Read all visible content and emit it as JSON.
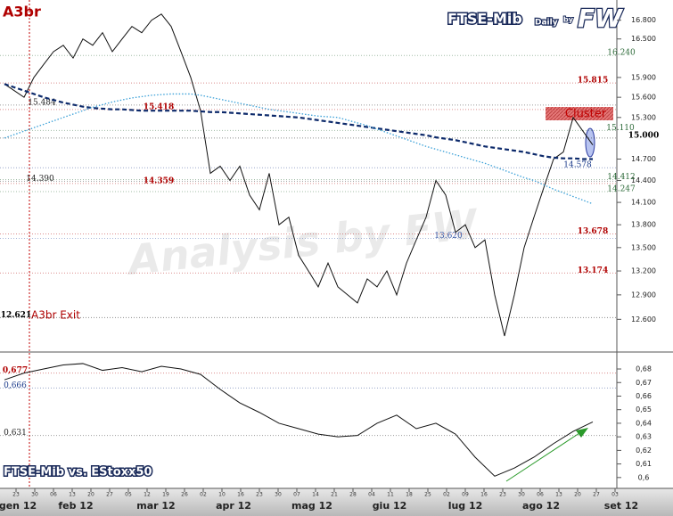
{
  "chart_data": [
    {
      "type": "line",
      "title": "FTSE-Mib",
      "subtitle": "Daily",
      "byline": "by",
      "brand": "FW",
      "watermark": "Analysis by FW",
      "annotations": [
        "A3br",
        "A3br Exit",
        "Cluster"
      ],
      "log_scale": true,
      "ylim": [
        12210,
        17130
      ],
      "yticks": [
        {
          "value": 16800,
          "label": "16.800"
        },
        {
          "value": 16500,
          "label": "16.500"
        },
        {
          "value": 15900,
          "label": "15.900"
        },
        {
          "value": 15600,
          "label": "15.600"
        },
        {
          "value": 15300,
          "label": "15.300"
        },
        {
          "value": 14700,
          "label": "14.700"
        },
        {
          "value": 14400,
          "label": "14.400"
        },
        {
          "value": 14100,
          "label": "14.100"
        },
        {
          "value": 13800,
          "label": "13.800"
        },
        {
          "value": 13500,
          "label": "13.500"
        },
        {
          "value": 13200,
          "label": "13.200"
        },
        {
          "value": 12900,
          "label": "12.900"
        },
        {
          "value": 12600,
          "label": "12.600"
        }
      ],
      "series": [
        {
          "color": "#111111",
          "style": "solid",
          "values": [
            15800,
            15700,
            15600,
            15900,
            16100,
            16300,
            16400,
            16200,
            16500,
            16400,
            16600,
            16300,
            16500,
            16700,
            16600,
            16800,
            16900,
            16700,
            16300,
            15900,
            15400,
            14500,
            14600,
            14400,
            14600,
            14200,
            14000,
            14500,
            13800,
            13900,
            13400,
            13200,
            13000,
            13300,
            13000,
            12900,
            12800,
            13100,
            13000,
            13200,
            12900,
            13300,
            13600,
            13900,
            14400,
            14200,
            13700,
            13800,
            13500,
            13600,
            12900,
            12400,
            12900,
            13500,
            13900,
            14300,
            14700,
            14800,
            15300,
            15100,
            14900
          ]
        },
        {
          "color": "#0d2a6b",
          "style": "dashed",
          "values": [
            15800,
            15750,
            15700,
            15650,
            15600,
            15560,
            15520,
            15490,
            15460,
            15440,
            15430,
            15420,
            15420,
            15410,
            15400,
            15400,
            15400,
            15400,
            15400,
            15400,
            15390,
            15380,
            15380,
            15370,
            15360,
            15350,
            15340,
            15330,
            15320,
            15310,
            15300,
            15280,
            15260,
            15240,
            15220,
            15200,
            15180,
            15160,
            15140,
            15120,
            15100,
            15080,
            15060,
            15040,
            15010,
            14990,
            14970,
            14940,
            14910,
            14880,
            14860,
            14840,
            14820,
            14800,
            14770,
            14740,
            14720,
            14710,
            14710,
            14700,
            14700
          ]
        },
        {
          "color": "#3aa0d8",
          "style": "dotted",
          "values": [
            15000,
            15050,
            15100,
            15150,
            15200,
            15250,
            15300,
            15350,
            15400,
            15450,
            15490,
            15530,
            15560,
            15590,
            15610,
            15630,
            15640,
            15650,
            15650,
            15650,
            15630,
            15600,
            15570,
            15540,
            15510,
            15480,
            15450,
            15420,
            15400,
            15380,
            15360,
            15340,
            15320,
            15310,
            15300,
            15260,
            15220,
            15180,
            15130,
            15080,
            15030,
            14980,
            14930,
            14880,
            14840,
            14800,
            14760,
            14720,
            14680,
            14640,
            14590,
            14540,
            14490,
            14440,
            14400,
            14340,
            14280,
            14230,
            14180,
            14130,
            14080
          ]
        }
      ],
      "levels": [
        {
          "value": 16240,
          "label": "16.240",
          "color": "#2e6b3a"
        },
        {
          "value": 15815,
          "label": "15.815",
          "color": "#b00000"
        },
        {
          "value": 15484,
          "label": "15.484",
          "color": "#222222"
        },
        {
          "value": 15418,
          "label": "15.418",
          "color": "#b00000"
        },
        {
          "value": 15110,
          "label": "15.110",
          "color": "#2e6b3a"
        },
        {
          "value": 15000,
          "label": "15.000",
          "color": "#000000"
        },
        {
          "value": 14578,
          "label": "14.578",
          "color": "#1a3a8a"
        },
        {
          "value": 14412,
          "label": "14.412",
          "color": "#2e6b3a"
        },
        {
          "value": 14390,
          "label": "14.390",
          "color": "#222222"
        },
        {
          "value": 14359,
          "label": "14.359",
          "color": "#b00000"
        },
        {
          "value": 14247,
          "label": "14.247",
          "color": "#2e6b3a"
        },
        {
          "value": 13678,
          "label": "13.678",
          "color": "#b00000"
        },
        {
          "value": 13620,
          "label": "13.620",
          "color": "#3a5aa8"
        },
        {
          "value": 13174,
          "label": "13.174",
          "color": "#b00000"
        },
        {
          "value": 12621,
          "label": "12.621",
          "color": "#000000"
        }
      ]
    },
    {
      "type": "line",
      "title": "FTSE-Mib vs. EStoxx50",
      "log_scale": false,
      "ylim": [
        0.592,
        0.6925
      ],
      "yticks": [
        {
          "value": 0.6,
          "label": "0,6"
        },
        {
          "value": 0.61,
          "label": "0,61"
        },
        {
          "value": 0.62,
          "label": "0,62"
        },
        {
          "value": 0.63,
          "label": "0,63"
        },
        {
          "value": 0.64,
          "label": "0,64"
        },
        {
          "value": 0.65,
          "label": "0,65"
        },
        {
          "value": 0.66,
          "label": "0,66"
        },
        {
          "value": 0.67,
          "label": "0,67"
        },
        {
          "value": 0.68,
          "label": "0,68"
        }
      ],
      "series": [
        {
          "color": "#111111",
          "style": "solid",
          "values": [
            0.672,
            0.677,
            0.68,
            0.683,
            0.684,
            0.679,
            0.681,
            0.678,
            0.682,
            0.68,
            0.676,
            0.665,
            0.655,
            0.648,
            0.64,
            0.636,
            0.632,
            0.63,
            0.631,
            0.64,
            0.646,
            0.636,
            0.64,
            0.632,
            0.615,
            0.601,
            0.607,
            0.615,
            0.625,
            0.634,
            0.641
          ]
        }
      ],
      "levels": [
        {
          "value": 0.677,
          "label": "0,677",
          "color": "#b00000"
        },
        {
          "value": 0.666,
          "label": "0,666",
          "color": "#1a3a8a"
        },
        {
          "value": 0.631,
          "label": "0,631",
          "color": "#222222"
        }
      ]
    }
  ],
  "time_axis": {
    "days": [
      "23",
      "30",
      "06",
      "13",
      "20",
      "27",
      "05",
      "12",
      "19",
      "26",
      "02",
      "10",
      "16",
      "23",
      "30",
      "07",
      "14",
      "21",
      "28",
      "04",
      "11",
      "18",
      "25",
      "02",
      "09",
      "16",
      "23",
      "30",
      "06",
      "13",
      "20",
      "27",
      "03"
    ],
    "months": [
      "gen 12",
      "feb 12",
      "mar 12",
      "apr 12",
      "mag 12",
      "giu 12",
      "lug 12",
      "ago 12",
      "set 12"
    ]
  }
}
